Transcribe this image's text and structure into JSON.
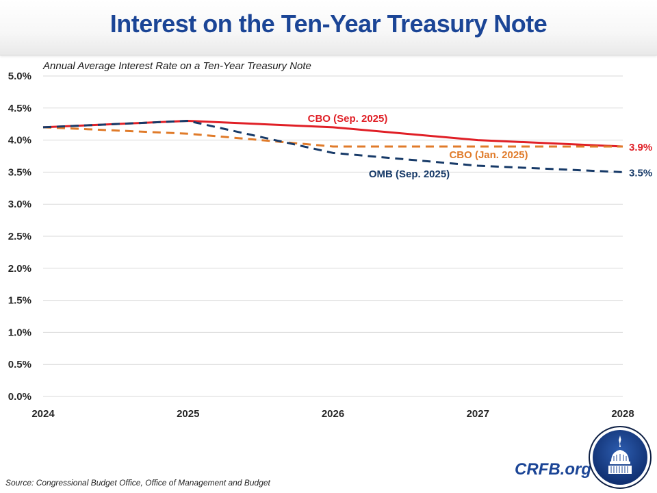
{
  "header": {
    "title": "Interest on the Ten-Year Treasury Note"
  },
  "footer": {
    "source": "Source: Congressional Budget Office, Office of Management and Budget",
    "brand": "CRFB.org",
    "logo_icon": "capitol-dome-icon"
  },
  "chart_data": {
    "type": "line",
    "title": "Interest on the Ten-Year Treasury Note",
    "subtitle": "Annual Average Interest Rate on a Ten-Year Treasury Note",
    "xlabel": "",
    "ylabel": "",
    "x": [
      "2024",
      "2025",
      "2026",
      "2027",
      "2028"
    ],
    "ylim": [
      0,
      5.0
    ],
    "yticks": [
      0.0,
      0.5,
      1.0,
      1.5,
      2.0,
      2.5,
      3.0,
      3.5,
      4.0,
      4.5,
      5.0
    ],
    "ytick_labels": [
      "0.0%",
      "0.5%",
      "1.0%",
      "1.5%",
      "2.0%",
      "2.5%",
      "3.0%",
      "3.5%",
      "4.0%",
      "4.5%",
      "5.0%"
    ],
    "grid": true,
    "legend": "inline-labels",
    "series": [
      {
        "name": "CBO (Sep. 2025)",
        "values": [
          4.2,
          4.3,
          4.2,
          4.0,
          3.9
        ],
        "color": "#e01f26",
        "style": "solid",
        "end_label": "3.9%"
      },
      {
        "name": "CBO (Jan. 2025)",
        "values": [
          4.2,
          4.1,
          3.9,
          3.9,
          3.9
        ],
        "color": "#e07b2a",
        "style": "dashed",
        "end_label": ""
      },
      {
        "name": "OMB (Sep. 2025)",
        "values": [
          4.2,
          4.3,
          3.8,
          3.6,
          3.5
        ],
        "color": "#173a68",
        "style": "dashed",
        "end_label": "3.5%"
      }
    ]
  }
}
